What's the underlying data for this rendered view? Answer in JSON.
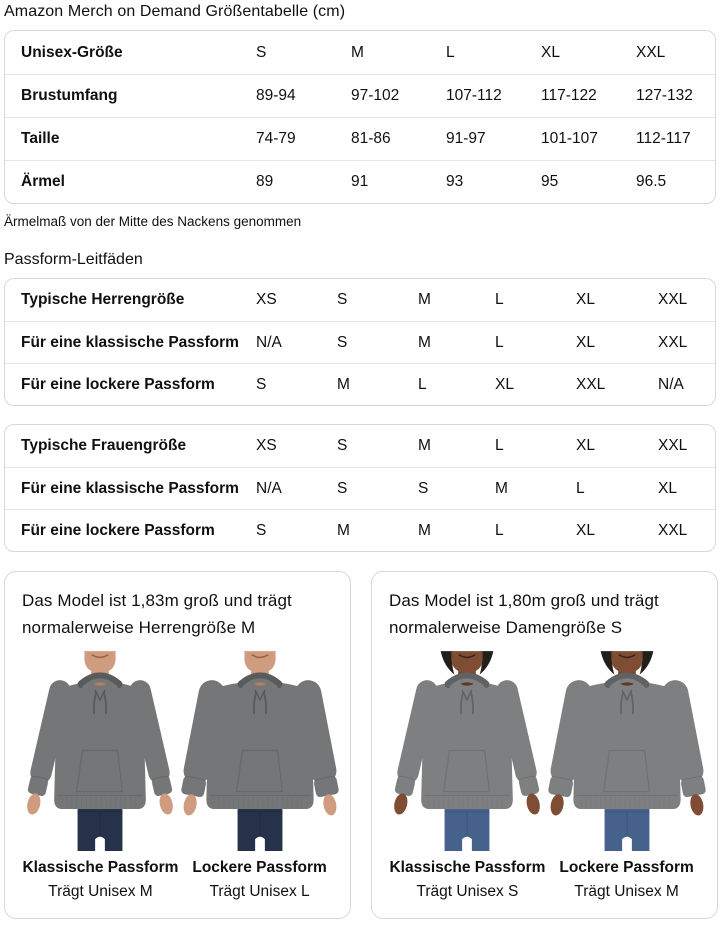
{
  "page": {
    "title": "Amazon Merch on Demand Größentabelle (cm)"
  },
  "size_table": {
    "rows": [
      {
        "label": "Unisex-Größe",
        "v": [
          "S",
          "M",
          "L",
          "XL",
          "XXL"
        ]
      },
      {
        "label": "Brustumfang",
        "v": [
          "89-94",
          "97-102",
          "107-112",
          "117-122",
          "127-132"
        ]
      },
      {
        "label": "Taille",
        "v": [
          "74-79",
          "81-86",
          "91-97",
          "101-107",
          "112-117"
        ]
      },
      {
        "label": "Ärmel",
        "v": [
          "89",
          "91",
          "93",
          "95",
          "96.5"
        ]
      }
    ],
    "note": "Ärmelmaß von der Mitte des Nackens genommen"
  },
  "fit_guides": {
    "heading": "Passform-Leitfäden",
    "tables": [
      {
        "rows": [
          {
            "label": "Typische Herrengröße",
            "v": [
              "XS",
              "S",
              "M",
              "L",
              "XL",
              "XXL"
            ]
          },
          {
            "label": "Für eine klassische Passform",
            "v": [
              "N/A",
              "S",
              "M",
              "L",
              "XL",
              "XXL"
            ]
          },
          {
            "label": "Für eine lockere Passform",
            "v": [
              "S",
              "M",
              "L",
              "XL",
              "XXL",
              "N/A"
            ]
          }
        ]
      },
      {
        "rows": [
          {
            "label": "Typische Frauengröße",
            "v": [
              "XS",
              "S",
              "M",
              "L",
              "XL",
              "XXL"
            ]
          },
          {
            "label": "Für eine klassische Passform",
            "v": [
              "N/A",
              "S",
              "S",
              "M",
              "L",
              "XL"
            ]
          },
          {
            "label": "Für eine lockere Passform",
            "v": [
              "S",
              "M",
              "M",
              "L",
              "XL",
              "XXL"
            ]
          }
        ]
      }
    ]
  },
  "model_cards": [
    {
      "description": "Das Model ist 1,83m groß und trägt normalerweise Herrengröße M",
      "figures": [
        {
          "fit": "Klassische Passform",
          "wears": "Trägt Unisex M",
          "variant": "male-classic"
        },
        {
          "fit": "Lockere Passform",
          "wears": "Trägt Unisex L",
          "variant": "male-loose"
        }
      ]
    },
    {
      "description": "Das Model ist 1,80m groß und trägt normalerweise Damengröße S",
      "figures": [
        {
          "fit": "Klassische Passform",
          "wears": "Trägt Unisex S",
          "variant": "female-classic"
        },
        {
          "fit": "Lockere Passform",
          "wears": "Trägt Unisex M",
          "variant": "female-loose"
        }
      ]
    }
  ],
  "figure_colors": {
    "male": {
      "skin": "#cf9c80",
      "skin_shade": "#b3805f",
      "mouth": "#9c6247",
      "hoodie": "#757677",
      "hoodie_dark": "#595a5c",
      "jeans": "#26324a",
      "jeans_dark": "#1b2537",
      "hair": ""
    },
    "female": {
      "skin": "#7e4d34",
      "skin_shade": "#5f3723",
      "mouth": "#3f2315",
      "hoodie": "#7e7f81",
      "hoodie_dark": "#616264",
      "jeans": "#46618c",
      "jeans_dark": "#37507a",
      "hair": "#251f1b"
    }
  }
}
